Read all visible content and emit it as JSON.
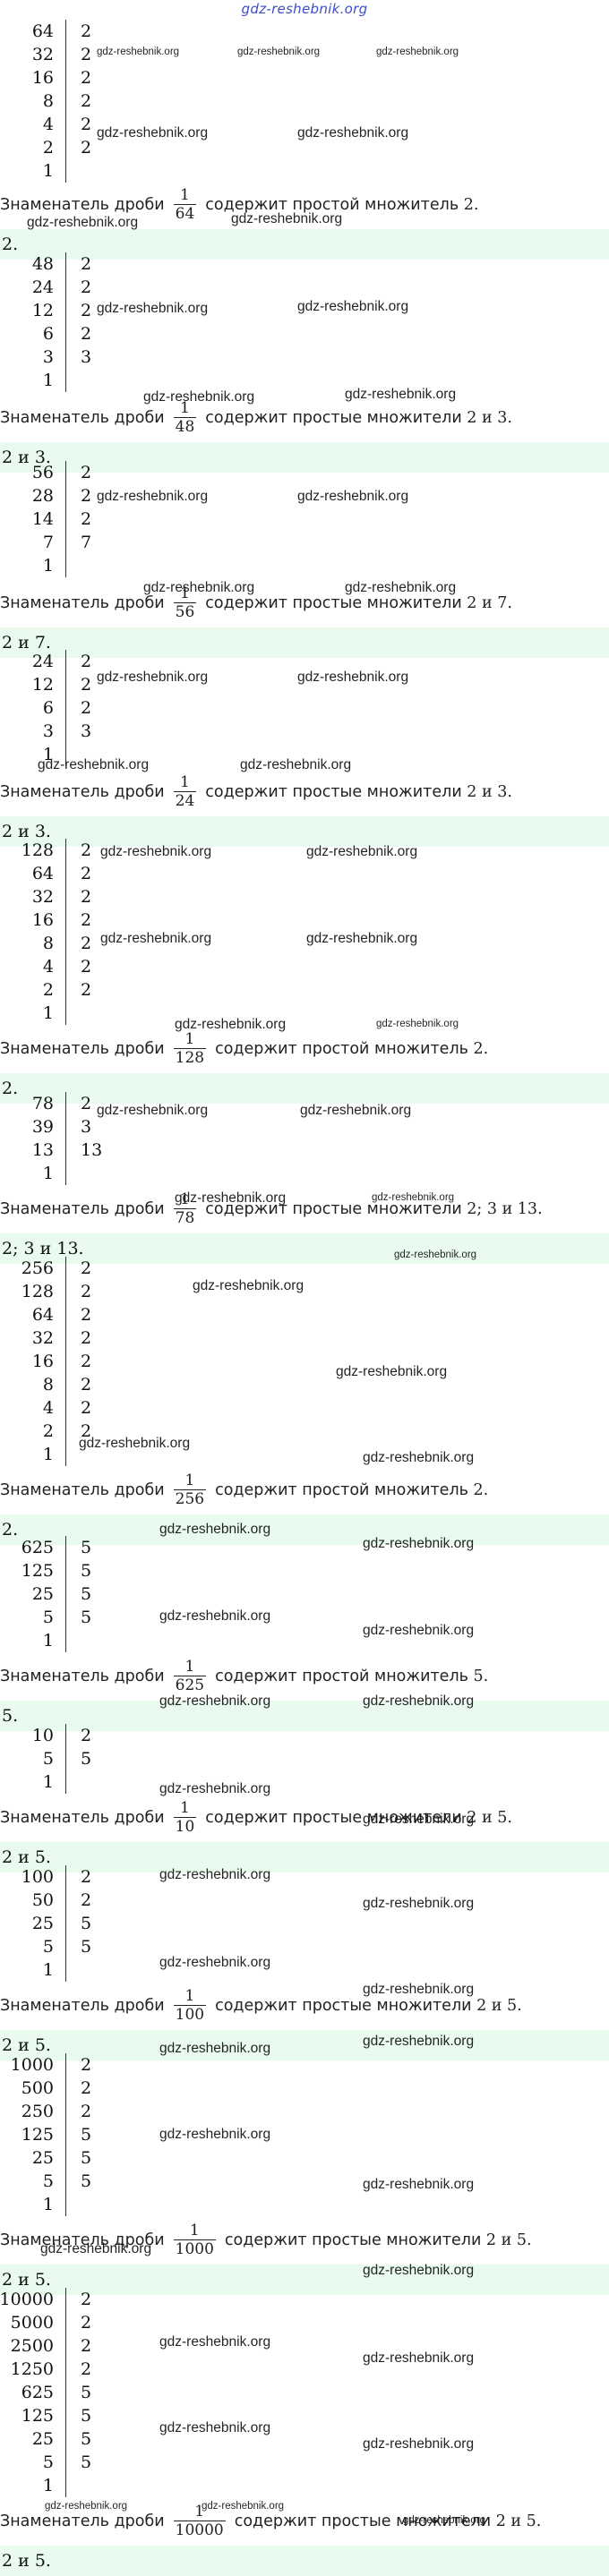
{
  "site_logo": "gdz-reshebnik.org",
  "sections": [
    {
      "factorization": [
        [
          "64",
          "2"
        ],
        [
          "32",
          "2"
        ],
        [
          "16",
          "2"
        ],
        [
          "8",
          "2"
        ],
        [
          "4",
          "2"
        ],
        [
          "2",
          "2"
        ],
        [
          "1",
          ""
        ]
      ],
      "statement": {
        "prefix": "Знаменатель дроби",
        "numerator": "1",
        "denominator": "64",
        "suffix": "содержит простой множитель",
        "primes": "2."
      },
      "answer": "2."
    },
    {
      "factorization": [
        [
          "48",
          "2"
        ],
        [
          "24",
          "2"
        ],
        [
          "12",
          "2"
        ],
        [
          "6",
          "2"
        ],
        [
          "3",
          "3"
        ],
        [
          "1",
          ""
        ]
      ],
      "statement": {
        "prefix": "Знаменатель дроби",
        "numerator": "1",
        "denominator": "48",
        "suffix": "содержит простые множители",
        "primes": "2 и 3."
      },
      "answer": "2 и 3."
    },
    {
      "factorization": [
        [
          "56",
          "2"
        ],
        [
          "28",
          "2"
        ],
        [
          "14",
          "2"
        ],
        [
          "7",
          "7"
        ],
        [
          "1",
          ""
        ]
      ],
      "statement": {
        "prefix": "Знаменатель дроби",
        "numerator": "1",
        "denominator": "56",
        "suffix": "содержит простые множители",
        "primes": "2 и 7."
      },
      "answer": "2 и 7."
    },
    {
      "factorization": [
        [
          "24",
          "2"
        ],
        [
          "12",
          "2"
        ],
        [
          "6",
          "2"
        ],
        [
          "3",
          "3"
        ],
        [
          "1",
          ""
        ]
      ],
      "statement": {
        "prefix": "Знаменатель дроби",
        "numerator": "1",
        "denominator": "24",
        "suffix": "содержит простые множители",
        "primes": "2 и 3."
      },
      "answer": "2 и 3."
    },
    {
      "factorization": [
        [
          "128",
          "2"
        ],
        [
          "64",
          "2"
        ],
        [
          "32",
          "2"
        ],
        [
          "16",
          "2"
        ],
        [
          "8",
          "2"
        ],
        [
          "4",
          "2"
        ],
        [
          "2",
          "2"
        ],
        [
          "1",
          ""
        ]
      ],
      "statement": {
        "prefix": "Знаменатель дроби",
        "numerator": "1",
        "denominator": "128",
        "suffix": "содержит простой множитель",
        "primes": "2."
      },
      "answer": "2."
    },
    {
      "factorization": [
        [
          "78",
          "2"
        ],
        [
          "39",
          "3"
        ],
        [
          "13",
          "13"
        ],
        [
          "1",
          ""
        ]
      ],
      "statement": {
        "prefix": "Знаменатель дроби",
        "numerator": "1",
        "denominator": "78",
        "suffix": "содержит простые множители",
        "primes": "2; 3 и 13."
      },
      "answer": "2; 3 и 13."
    },
    {
      "factorization": [
        [
          "256",
          "2"
        ],
        [
          "128",
          "2"
        ],
        [
          "64",
          "2"
        ],
        [
          "32",
          "2"
        ],
        [
          "16",
          "2"
        ],
        [
          "8",
          "2"
        ],
        [
          "4",
          "2"
        ],
        [
          "2",
          "2"
        ],
        [
          "1",
          ""
        ]
      ],
      "statement": {
        "prefix": "Знаменатель дроби",
        "numerator": "1",
        "denominator": "256",
        "suffix": "содержит простой множитель",
        "primes": "2."
      },
      "answer": "2."
    },
    {
      "factorization": [
        [
          "625",
          "5"
        ],
        [
          "125",
          "5"
        ],
        [
          "25",
          "5"
        ],
        [
          "5",
          "5"
        ],
        [
          "1",
          ""
        ]
      ],
      "statement": {
        "prefix": "Знаменатель дроби",
        "numerator": "1",
        "denominator": "625",
        "suffix": "содержит простой множитель",
        "primes": "5."
      },
      "answer": "5."
    },
    {
      "factorization": [
        [
          "10",
          "2"
        ],
        [
          "5",
          "5"
        ],
        [
          "1",
          ""
        ]
      ],
      "statement": {
        "prefix": "Знаменатель дроби",
        "numerator": "1",
        "denominator": "10",
        "suffix": "содержит простые множители",
        "primes": "2 и 5."
      },
      "answer": "2 и 5."
    },
    {
      "factorization": [
        [
          "100",
          "2"
        ],
        [
          "50",
          "2"
        ],
        [
          "25",
          "5"
        ],
        [
          "5",
          "5"
        ],
        [
          "1",
          ""
        ]
      ],
      "statement": {
        "prefix": "Знаменатель дроби",
        "numerator": "1",
        "denominator": "100",
        "suffix": "содержит простые множители",
        "primes": "2 и 5."
      },
      "answer": "2 и 5."
    },
    {
      "factorization": [
        [
          "1000",
          "2"
        ],
        [
          "500",
          "2"
        ],
        [
          "250",
          "2"
        ],
        [
          "125",
          "5"
        ],
        [
          "25",
          "5"
        ],
        [
          "5",
          "5"
        ],
        [
          "1",
          ""
        ]
      ],
      "statement": {
        "prefix": "Знаменатель дроби",
        "numerator": "1",
        "denominator": "1000",
        "suffix": "содержит простые множители",
        "primes": "2 и 5."
      },
      "answer": "2 и 5."
    },
    {
      "factorization": [
        [
          "10000",
          "2"
        ],
        [
          "5000",
          "2"
        ],
        [
          "2500",
          "2"
        ],
        [
          "1250",
          "2"
        ],
        [
          "625",
          "5"
        ],
        [
          "125",
          "5"
        ],
        [
          "25",
          "5"
        ],
        [
          "5",
          "5"
        ],
        [
          "1",
          ""
        ]
      ],
      "statement": {
        "prefix": "Знаменатель дроби",
        "numerator": "1",
        "denominator": "10000",
        "suffix": "содержит простые множители",
        "primes": "2 и 5."
      },
      "answer": "2 и 5."
    }
  ],
  "watermark_text": "gdz-reshebnik.org"
}
